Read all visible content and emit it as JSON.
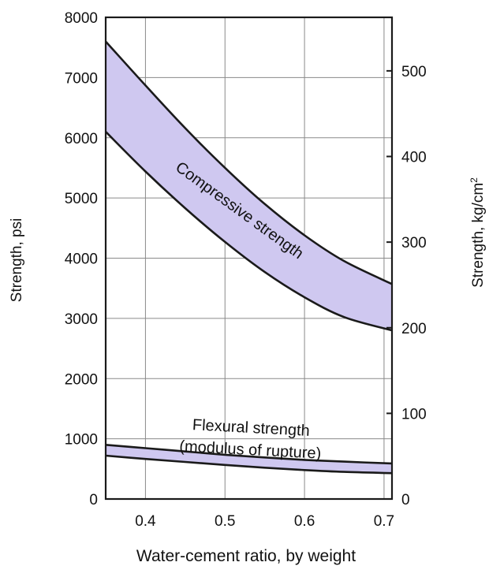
{
  "chart_data": {
    "type": "area",
    "title": "",
    "xlabel": "Water-cement ratio, by weight",
    "ylabel": "Strength, psi",
    "ylabel_right": "Strength, kg/cm",
    "ylabel_right_sup": "2",
    "xlim": [
      0.35,
      0.71
    ],
    "ylim": [
      0,
      8000
    ],
    "ylim_right": [
      0,
      562.5
    ],
    "x_ticks": [
      "0.4",
      "0.5",
      "0.6",
      "0.7"
    ],
    "y_ticks": [
      "0",
      "1000",
      "2000",
      "3000",
      "4000",
      "5000",
      "6000",
      "7000",
      "8000"
    ],
    "y_right_ticks": [
      "0",
      "100",
      "200",
      "300",
      "400",
      "500"
    ],
    "grid": true,
    "legend": "none",
    "fill_color": "#cfc8f0",
    "line_color": "#1a1a1a",
    "series": [
      {
        "name": "Compressive strength",
        "x": [
          0.35,
          0.4,
          0.45,
          0.5,
          0.55,
          0.6,
          0.65,
          0.71
        ],
        "upper": [
          7600,
          6870,
          6160,
          5500,
          4900,
          4380,
          3950,
          3570
        ],
        "lower": [
          6100,
          5440,
          4830,
          4270,
          3770,
          3350,
          3020,
          2800
        ]
      },
      {
        "name": "Flexural strength",
        "label_line2": "(modulus of rupture)",
        "x": [
          0.35,
          0.4,
          0.45,
          0.5,
          0.55,
          0.6,
          0.65,
          0.71
        ],
        "upper": [
          900,
          845,
          790,
          735,
          690,
          650,
          620,
          590
        ],
        "lower": [
          720,
          665,
          615,
          565,
          520,
          480,
          450,
          430
        ]
      }
    ]
  }
}
